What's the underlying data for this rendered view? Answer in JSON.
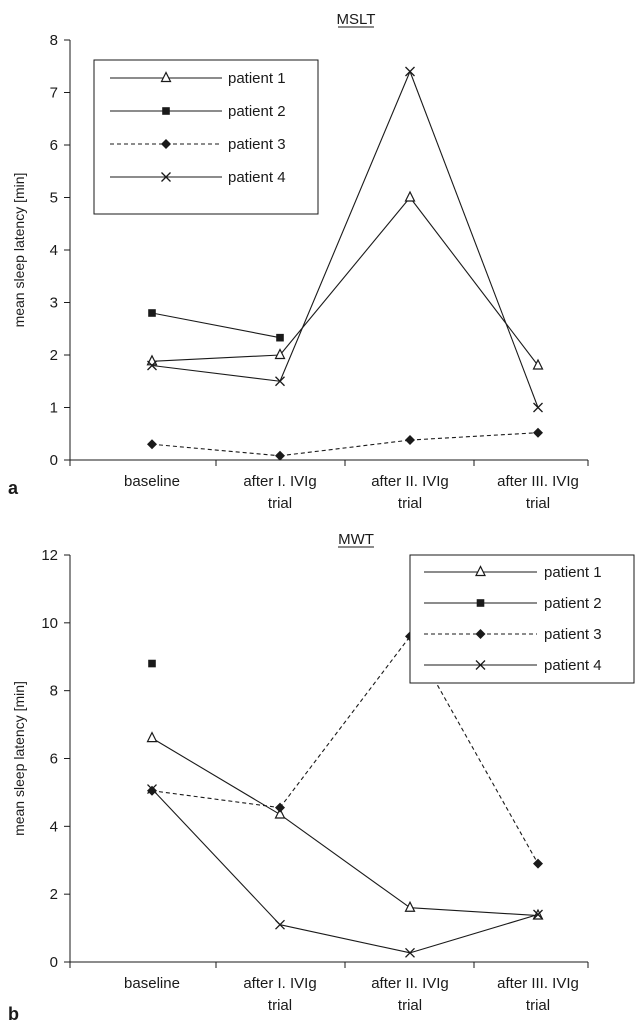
{
  "chart_data": [
    {
      "type": "line",
      "panel_label": "a",
      "title": "MSLT",
      "xlabel": "",
      "ylabel": "mean sleep latency [min]",
      "ylim": [
        0,
        8
      ],
      "yticks": [
        "0",
        "1",
        "2",
        "3",
        "4",
        "5",
        "6",
        "7",
        "8"
      ],
      "categories": [
        [
          "baseline"
        ],
        [
          "after I. IVIg",
          "trial"
        ],
        [
          "after II. IVIg",
          "trial"
        ],
        [
          "after III. IVIg",
          "trial"
        ]
      ],
      "legend_position": "top-left",
      "series": [
        {
          "name": "patient 1",
          "marker": "triangle-open",
          "dash": "solid",
          "values": [
            1.88,
            2.0,
            5.0,
            1.8
          ]
        },
        {
          "name": "patient 2",
          "marker": "square-filled",
          "dash": "solid",
          "values": [
            2.8,
            2.33,
            null,
            null
          ]
        },
        {
          "name": "patient 3",
          "marker": "diamond-filled",
          "dash": "dashed",
          "values": [
            0.3,
            0.08,
            0.38,
            0.52
          ]
        },
        {
          "name": "patient 4",
          "marker": "x",
          "dash": "solid",
          "values": [
            1.8,
            1.5,
            7.4,
            1.0
          ]
        }
      ]
    },
    {
      "type": "line",
      "panel_label": "b",
      "title": "MWT",
      "xlabel": "",
      "ylabel": "mean sleep latency [min]",
      "ylim": [
        0,
        12
      ],
      "yticks": [
        "0",
        "2",
        "4",
        "6",
        "8",
        "10",
        "12"
      ],
      "categories": [
        [
          "baseline"
        ],
        [
          "after I. IVIg",
          "trial"
        ],
        [
          "after II. IVIg",
          "trial"
        ],
        [
          "after III. IVIg",
          "trial"
        ]
      ],
      "legend_position": "top-right",
      "series": [
        {
          "name": "patient 1",
          "marker": "triangle-open",
          "dash": "solid",
          "values": [
            6.6,
            4.35,
            1.6,
            1.37
          ]
        },
        {
          "name": "patient 2",
          "marker": "square-filled",
          "dash": "solid",
          "values": [
            8.8,
            null,
            null,
            null
          ]
        },
        {
          "name": "patient 3",
          "marker": "diamond-filled",
          "dash": "dashed",
          "values": [
            5.05,
            4.55,
            9.6,
            2.9
          ]
        },
        {
          "name": "patient 4",
          "marker": "x",
          "dash": "solid",
          "values": [
            5.1,
            1.1,
            0.27,
            1.4
          ]
        }
      ]
    }
  ]
}
